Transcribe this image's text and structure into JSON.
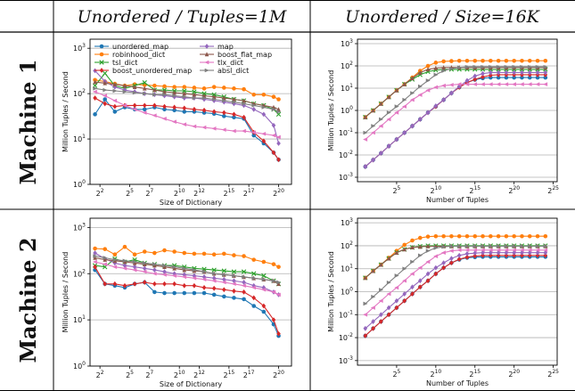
{
  "header": {
    "col1": "Unordered / Tuples=1M",
    "col2": "Unordered / Size=16K",
    "row1": "Machine 1",
    "row2": "Machine 2"
  },
  "legend_entries": [
    "unordered_map",
    "robinhood_dict",
    "tsl_dict",
    "boost_unordered_map",
    "map",
    "boost_flat_map",
    "tlx_dict",
    "absl_dict"
  ],
  "series_styles": [
    {
      "name": "unordered_map",
      "color": "#1f77b4",
      "marker": "circle"
    },
    {
      "name": "robinhood_dict",
      "color": "#ff7f0e",
      "marker": "circle"
    },
    {
      "name": "tsl_dict",
      "color": "#2ca02c",
      "marker": "x"
    },
    {
      "name": "boost_unordered_map",
      "color": "#d62728",
      "marker": "diamond"
    },
    {
      "name": "map",
      "color": "#9467bd",
      "marker": "diamond"
    },
    {
      "name": "boost_flat_map",
      "color": "#8c564b",
      "marker": "triangle-up"
    },
    {
      "name": "tlx_dict",
      "color": "#e377c2",
      "marker": "triangle-left"
    },
    {
      "name": "absl_dict",
      "color": "#7f7f7f",
      "marker": "triangle-right"
    }
  ],
  "chart_data": [
    {
      "type": "line",
      "machine": "Machine 1",
      "title": "Unordered / Tuples=1M",
      "xlabel": "Size of Dictionary",
      "ylabel": "Million Tuples / Second",
      "xscale": "log2",
      "yscale": "log10",
      "xlim": [
        1,
        21.3
      ],
      "ylim": [
        0,
        3.2
      ],
      "xticks": [
        "2",
        "5",
        "7",
        "10",
        "12",
        "15",
        "17",
        "20"
      ],
      "yticks": [
        "0",
        "1",
        "2",
        "3"
      ],
      "legend": "top-left",
      "grid": "y",
      "x": [
        1.5,
        2.5,
        3.5,
        4.5,
        5.5,
        6.5,
        7.5,
        8.5,
        9.5,
        10.5,
        11.5,
        12.5,
        13.5,
        14.5,
        15.5,
        16.5,
        17.5,
        18.5,
        19.5,
        20
      ],
      "series": [
        {
          "name": "unordered_map",
          "values": [
            35,
            75,
            40,
            50,
            45,
            45,
            50,
            45,
            43,
            40,
            40,
            38,
            36,
            32,
            30,
            28,
            12,
            8,
            5,
            3.5
          ]
        },
        {
          "name": "robinhood_dict",
          "values": [
            200,
            185,
            165,
            150,
            160,
            155,
            150,
            145,
            140,
            140,
            135,
            130,
            140,
            135,
            130,
            125,
            95,
            95,
            85,
            75
          ]
        },
        {
          "name": "tsl_dict",
          "values": [
            150,
            280,
            150,
            130,
            150,
            175,
            120,
            120,
            115,
            115,
            110,
            100,
            95,
            85,
            75,
            70,
            60,
            55,
            45,
            35
          ]
        },
        {
          "name": "boost_unordered_map",
          "values": [
            80,
            60,
            52,
            55,
            55,
            55,
            55,
            52,
            50,
            48,
            45,
            43,
            40,
            38,
            35,
            30,
            14,
            9,
            5,
            3.5
          ]
        },
        {
          "name": "map",
          "values": [
            320,
            185,
            140,
            120,
            110,
            100,
            95,
            90,
            85,
            80,
            80,
            75,
            70,
            65,
            60,
            55,
            45,
            35,
            20,
            8
          ]
        },
        {
          "name": "boost_flat_map",
          "values": [
            180,
            170,
            160,
            150,
            140,
            130,
            120,
            110,
            105,
            100,
            95,
            90,
            85,
            80,
            75,
            70,
            60,
            55,
            50,
            45
          ]
        },
        {
          "name": "tlx_dict",
          "values": [
            110,
            90,
            70,
            55,
            45,
            38,
            33,
            28,
            24,
            21,
            19,
            18,
            17,
            16,
            15,
            15,
            14,
            13,
            12,
            11
          ]
        },
        {
          "name": "absl_dict",
          "values": [
            130,
            120,
            115,
            110,
            105,
            100,
            95,
            95,
            90,
            85,
            80,
            80,
            75,
            70,
            65,
            60,
            55,
            50,
            45,
            40
          ]
        }
      ]
    },
    {
      "type": "line",
      "machine": "Machine 1",
      "title": "Unordered / Size=16K",
      "xlabel": "Number of Tuples",
      "ylabel": "Million Tuples / Second",
      "xscale": "log2",
      "yscale": "log10",
      "xlim": [
        0,
        25.5
      ],
      "ylim": [
        -3.2,
        3.2
      ],
      "xticks": [
        "5",
        "10",
        "15",
        "20",
        "25"
      ],
      "yticks": [
        "-3",
        "-2",
        "-1",
        "0",
        "1",
        "2",
        "3"
      ],
      "grid": "y",
      "x": [
        1,
        2,
        3,
        4,
        5,
        6,
        7,
        8,
        9,
        10,
        11,
        12,
        13,
        14,
        15,
        16,
        17,
        18,
        19,
        20,
        21,
        22,
        23,
        24
      ],
      "series": [
        {
          "name": "unordered_map",
          "values": [
            0.003,
            0.006,
            0.012,
            0.025,
            0.05,
            0.1,
            0.2,
            0.4,
            0.8,
            1.5,
            3,
            6,
            11,
            18,
            24,
            28,
            30,
            30,
            30,
            30,
            30,
            30,
            30,
            30
          ]
        },
        {
          "name": "robinhood_dict",
          "values": [
            0.5,
            1,
            2,
            4,
            8,
            15,
            30,
            60,
            100,
            140,
            160,
            165,
            170,
            170,
            170,
            170,
            170,
            170,
            170,
            170,
            170,
            170,
            170,
            170
          ]
        },
        {
          "name": "tsl_dict",
          "values": [
            0.5,
            1,
            2,
            4,
            8,
            15,
            25,
            40,
            55,
            65,
            70,
            70,
            70,
            70,
            70,
            70,
            70,
            70,
            70,
            70,
            70,
            70,
            70,
            70
          ]
        },
        {
          "name": "boost_unordered_map",
          "values": [
            0.003,
            0.006,
            0.012,
            0.025,
            0.05,
            0.1,
            0.2,
            0.4,
            0.8,
            1.5,
            3,
            6,
            11,
            18,
            25,
            32,
            38,
            40,
            40,
            40,
            40,
            40,
            40,
            40
          ]
        },
        {
          "name": "map",
          "values": [
            0.003,
            0.006,
            0.012,
            0.025,
            0.05,
            0.1,
            0.2,
            0.4,
            0.8,
            1.6,
            3,
            6,
            12,
            22,
            35,
            45,
            50,
            50,
            50,
            50,
            50,
            50,
            50,
            50
          ]
        },
        {
          "name": "boost_flat_map",
          "values": [
            0.5,
            1,
            2,
            4,
            8,
            15,
            28,
            50,
            70,
            80,
            85,
            85,
            85,
            85,
            85,
            85,
            85,
            85,
            85,
            85,
            85,
            85,
            85,
            85
          ]
        },
        {
          "name": "tlx_dict",
          "values": [
            0.05,
            0.1,
            0.2,
            0.4,
            0.8,
            1.5,
            3,
            5,
            8,
            11,
            13,
            14,
            15,
            15,
            15,
            15,
            15,
            15,
            15,
            15,
            15,
            15,
            15,
            15
          ]
        },
        {
          "name": "absl_dict",
          "values": [
            0.1,
            0.2,
            0.4,
            0.8,
            1.5,
            3,
            6,
            12,
            22,
            40,
            60,
            75,
            85,
            90,
            90,
            90,
            90,
            90,
            90,
            90,
            90,
            90,
            90,
            90
          ]
        }
      ]
    },
    {
      "type": "line",
      "machine": "Machine 2",
      "title": "Unordered / Tuples=1M",
      "xlabel": "Size of Dictionary",
      "ylabel": "Million Tuples / Second",
      "xscale": "log2",
      "yscale": "log10",
      "xlim": [
        1,
        21.3
      ],
      "ylim": [
        0,
        3.2
      ],
      "xticks": [
        "2",
        "5",
        "7",
        "10",
        "12",
        "15",
        "17",
        "20"
      ],
      "yticks": [
        "0",
        "1",
        "2",
        "3"
      ],
      "grid": "y",
      "x": [
        1.5,
        2.5,
        3.5,
        4.5,
        5.5,
        6.5,
        7.5,
        8.5,
        9.5,
        10.5,
        11.5,
        12.5,
        13.5,
        14.5,
        15.5,
        16.5,
        17.5,
        18.5,
        19.5,
        20
      ],
      "series": [
        {
          "name": "unordered_map",
          "values": [
            120,
            60,
            55,
            50,
            60,
            65,
            40,
            38,
            38,
            38,
            38,
            38,
            35,
            32,
            30,
            28,
            20,
            15,
            8,
            4.5
          ]
        },
        {
          "name": "robinhood_dict",
          "values": [
            350,
            340,
            260,
            380,
            260,
            300,
            280,
            320,
            300,
            280,
            270,
            270,
            260,
            270,
            250,
            240,
            200,
            180,
            160,
            140
          ]
        },
        {
          "name": "tsl_dict",
          "values": [
            150,
            140,
            210,
            180,
            200,
            170,
            160,
            150,
            150,
            140,
            130,
            125,
            120,
            115,
            110,
            110,
            100,
            90,
            70,
            60
          ]
        },
        {
          "name": "boost_unordered_map",
          "values": [
            140,
            60,
            60,
            55,
            60,
            65,
            60,
            60,
            60,
            55,
            55,
            50,
            48,
            45,
            42,
            40,
            30,
            20,
            10,
            5
          ]
        },
        {
          "name": "map",
          "values": [
            280,
            210,
            170,
            150,
            140,
            130,
            120,
            110,
            100,
            95,
            90,
            85,
            80,
            75,
            70,
            65,
            55,
            50,
            40,
            35
          ]
        },
        {
          "name": "boost_flat_map",
          "values": [
            220,
            200,
            190,
            180,
            170,
            160,
            150,
            140,
            130,
            120,
            115,
            110,
            100,
            95,
            90,
            85,
            80,
            75,
            70,
            60
          ]
        },
        {
          "name": "tlx_dict",
          "values": [
            180,
            160,
            140,
            130,
            120,
            110,
            100,
            95,
            90,
            85,
            80,
            75,
            70,
            65,
            60,
            55,
            50,
            45,
            40,
            35
          ]
        },
        {
          "name": "absl_dict",
          "values": [
            240,
            220,
            200,
            190,
            180,
            170,
            160,
            150,
            140,
            130,
            120,
            110,
            100,
            95,
            90,
            85,
            80,
            75,
            70,
            65
          ]
        }
      ]
    },
    {
      "type": "line",
      "machine": "Machine 2",
      "title": "Unordered / Size=16K",
      "xlabel": "Number of Tuples",
      "ylabel": "Million Tuples / Second",
      "xscale": "log2",
      "yscale": "log10",
      "xlim": [
        0,
        25.5
      ],
      "ylim": [
        -3.2,
        3.2
      ],
      "xticks": [
        "5",
        "10",
        "15",
        "20",
        "25"
      ],
      "yticks": [
        "-3",
        "-2",
        "-1",
        "0",
        "1",
        "2",
        "3"
      ],
      "grid": "y",
      "x": [
        1,
        2,
        3,
        4,
        5,
        6,
        7,
        8,
        9,
        10,
        11,
        12,
        13,
        14,
        15,
        16,
        17,
        18,
        19,
        20,
        21,
        22,
        23,
        24
      ],
      "series": [
        {
          "name": "unordered_map",
          "values": [
            0.012,
            0.025,
            0.05,
            0.1,
            0.2,
            0.4,
            0.8,
            1.6,
            3,
            6,
            11,
            18,
            25,
            30,
            32,
            33,
            33,
            33,
            33,
            33,
            33,
            33,
            33,
            33
          ]
        },
        {
          "name": "robinhood_dict",
          "values": [
            4,
            8,
            15,
            30,
            60,
            110,
            170,
            220,
            250,
            260,
            260,
            260,
            260,
            260,
            260,
            260,
            260,
            260,
            260,
            260,
            260,
            260,
            260,
            260
          ]
        },
        {
          "name": "tsl_dict",
          "values": [
            4,
            8,
            15,
            28,
            50,
            70,
            85,
            95,
            100,
            100,
            100,
            100,
            100,
            100,
            100,
            100,
            100,
            100,
            100,
            100,
            100,
            100,
            100,
            100
          ]
        },
        {
          "name": "boost_unordered_map",
          "values": [
            0.012,
            0.025,
            0.05,
            0.1,
            0.2,
            0.4,
            0.8,
            1.6,
            3,
            6,
            11,
            18,
            26,
            32,
            36,
            38,
            38,
            38,
            38,
            38,
            38,
            38,
            38,
            38
          ]
        },
        {
          "name": "map",
          "values": [
            0.025,
            0.05,
            0.1,
            0.2,
            0.4,
            0.8,
            1.6,
            3,
            6,
            11,
            18,
            28,
            38,
            45,
            48,
            50,
            50,
            50,
            50,
            50,
            50,
            50,
            50,
            50
          ]
        },
        {
          "name": "boost_flat_map",
          "values": [
            4,
            8,
            15,
            28,
            50,
            70,
            85,
            90,
            95,
            95,
            95,
            95,
            95,
            95,
            95,
            95,
            95,
            95,
            95,
            95,
            95,
            95,
            95,
            95
          ]
        },
        {
          "name": "tlx_dict",
          "values": [
            0.1,
            0.2,
            0.4,
            0.8,
            1.5,
            3,
            6,
            11,
            20,
            35,
            50,
            60,
            65,
            65,
            65,
            65,
            65,
            65,
            65,
            65,
            65,
            65,
            65,
            65
          ]
        },
        {
          "name": "absl_dict",
          "values": [
            0.3,
            0.6,
            1.2,
            2.5,
            5,
            10,
            20,
            38,
            60,
            80,
            90,
            95,
            95,
            95,
            95,
            95,
            95,
            95,
            95,
            95,
            95,
            95,
            95,
            95
          ]
        }
      ]
    }
  ]
}
